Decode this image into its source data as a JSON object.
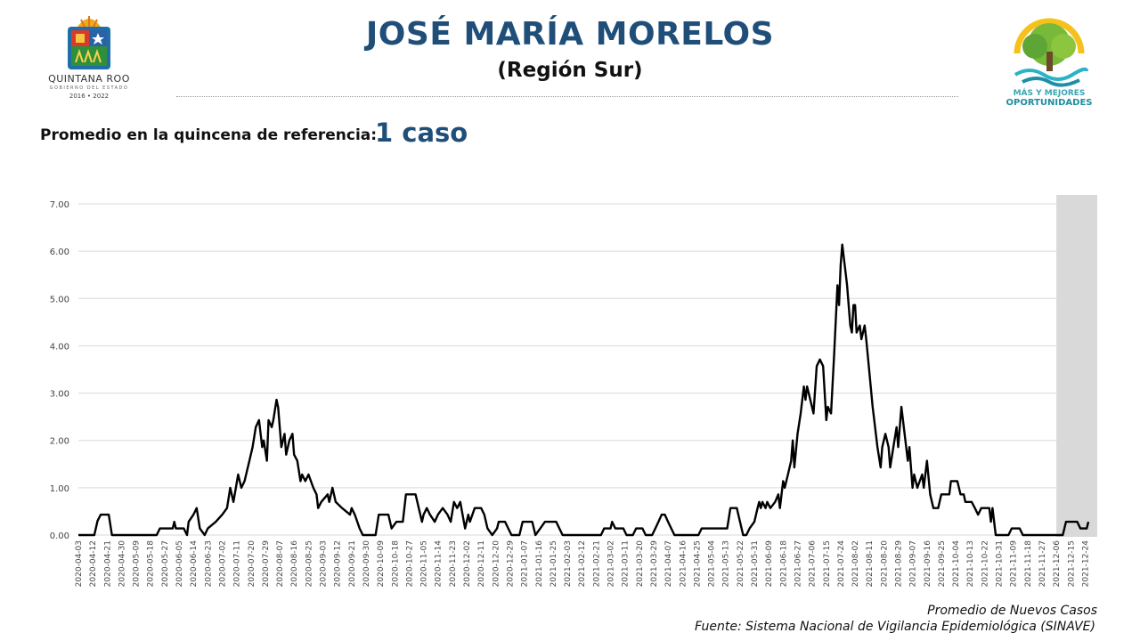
{
  "header": {
    "title": "JOSÉ MARÍA MORELOS",
    "subtitle": "(Región Sur)"
  },
  "logos": {
    "left_name": "QUINTANA ROO",
    "left_gov": "GOBIERNO DEL ESTADO",
    "left_years": "2016 • 2022",
    "right_line1": "MÁS Y MEJORES",
    "right_line2": "OPORTUNIDADES"
  },
  "kpi": {
    "label": "Promedio en la quincena de referencia:",
    "value": "1 caso"
  },
  "footer": {
    "series_label": "Promedio de Nuevos Casos",
    "source": "Fuente: Sistema Nacional de Vigilancia Epidemiológica (SINAVE)"
  },
  "colors": {
    "title": "#1f4e79",
    "line": "#000000",
    "grid": "#d9d9d9",
    "shade": "#d9d9d9"
  },
  "chart_data": {
    "type": "line",
    "title": "",
    "xlabel": "",
    "ylabel": "",
    "ylim": [
      0,
      7
    ],
    "grid": true,
    "y_ticks": [
      "0.00",
      "1.00",
      "2.00",
      "3.00",
      "4.00",
      "5.00",
      "6.00",
      "7.00"
    ],
    "x_tick_labels": [
      "2020-04-03",
      "2020-04-12",
      "2020-04-21",
      "2020-04-30",
      "2020-05-09",
      "2020-05-18",
      "2020-05-27",
      "2020-06-05",
      "2020-06-14",
      "2020-06-23",
      "2020-07-02",
      "2020-07-11",
      "2020-07-20",
      "2020-07-29",
      "2020-08-07",
      "2020-08-16",
      "2020-08-25",
      "2020-09-03",
      "2020-09-12",
      "2020-09-21",
      "2020-09-30",
      "2020-10-09",
      "2020-10-18",
      "2020-10-27",
      "2020-11-05",
      "2020-11-14",
      "2020-11-23",
      "2020-12-02",
      "2020-12-11",
      "2020-12-20",
      "2020-12-29",
      "2021-01-07",
      "2021-01-16",
      "2021-01-25",
      "2021-02-03",
      "2021-02-12",
      "2021-02-21",
      "2021-03-02",
      "2021-03-11",
      "2021-03-20",
      "2021-03-29",
      "2021-04-07",
      "2021-04-16",
      "2021-04-25",
      "2021-05-04",
      "2021-05-13",
      "2021-05-22",
      "2021-05-31",
      "2021-06-09",
      "2021-06-18",
      "2021-06-27",
      "2021-07-06",
      "2021-07-15",
      "2021-07-24",
      "2021-08-02",
      "2021-08-11",
      "2021-08-20",
      "2021-08-29",
      "2021-09-07",
      "2021-09-16",
      "2021-09-25",
      "2021-10-04",
      "2021-10-13",
      "2021-10-22",
      "2021-10-31",
      "2021-11-09",
      "2021-11-18",
      "2021-11-27",
      "2021-12-06",
      "2021-12-15",
      "2021-12-24"
    ],
    "shaded_range": [
      "2021-12-06",
      "2021-12-31"
    ],
    "series": [
      {
        "points": [
          [
            "2020-04-03",
            0
          ],
          [
            "2020-04-13",
            0
          ],
          [
            "2020-04-15",
            0.3
          ],
          [
            "2020-04-17",
            0.43
          ],
          [
            "2020-04-22",
            0.43
          ],
          [
            "2020-04-24",
            0
          ],
          [
            "2020-05-22",
            0
          ],
          [
            "2020-05-24",
            0.14
          ],
          [
            "2020-06-01",
            0.14
          ],
          [
            "2020-06-02",
            0.28
          ],
          [
            "2020-06-03",
            0.14
          ],
          [
            "2020-06-08",
            0.14
          ],
          [
            "2020-06-10",
            0
          ],
          [
            "2020-06-11",
            0.28
          ],
          [
            "2020-06-14",
            0.43
          ],
          [
            "2020-06-16",
            0.57
          ],
          [
            "2020-06-18",
            0.14
          ],
          [
            "2020-06-21",
            0
          ],
          [
            "2020-06-23",
            0.14
          ],
          [
            "2020-06-28",
            0.28
          ],
          [
            "2020-07-02",
            0.43
          ],
          [
            "2020-07-05",
            0.57
          ],
          [
            "2020-07-07",
            1.0
          ],
          [
            "2020-07-09",
            0.7
          ],
          [
            "2020-07-12",
            1.28
          ],
          [
            "2020-07-14",
            1.0
          ],
          [
            "2020-07-16",
            1.14
          ],
          [
            "2020-07-19",
            1.57
          ],
          [
            "2020-07-21",
            1.86
          ],
          [
            "2020-07-23",
            2.28
          ],
          [
            "2020-07-25",
            2.43
          ],
          [
            "2020-07-27",
            1.86
          ],
          [
            "2020-07-28",
            2.0
          ],
          [
            "2020-07-30",
            1.57
          ],
          [
            "2020-07-31",
            2.43
          ],
          [
            "2020-08-02",
            2.28
          ],
          [
            "2020-08-03",
            2.43
          ],
          [
            "2020-08-05",
            2.86
          ],
          [
            "2020-08-06",
            2.7
          ],
          [
            "2020-08-08",
            1.86
          ],
          [
            "2020-08-10",
            2.14
          ],
          [
            "2020-08-11",
            1.7
          ],
          [
            "2020-08-13",
            2.0
          ],
          [
            "2020-08-15",
            2.14
          ],
          [
            "2020-08-16",
            1.7
          ],
          [
            "2020-08-18",
            1.57
          ],
          [
            "2020-08-20",
            1.14
          ],
          [
            "2020-08-21",
            1.28
          ],
          [
            "2020-08-23",
            1.14
          ],
          [
            "2020-08-25",
            1.28
          ],
          [
            "2020-08-28",
            1.0
          ],
          [
            "2020-08-30",
            0.86
          ],
          [
            "2020-08-31",
            0.57
          ],
          [
            "2020-09-02",
            0.7
          ],
          [
            "2020-09-06",
            0.86
          ],
          [
            "2020-09-07",
            0.7
          ],
          [
            "2020-09-09",
            1.0
          ],
          [
            "2020-09-11",
            0.7
          ],
          [
            "2020-09-15",
            0.57
          ],
          [
            "2020-09-20",
            0.43
          ],
          [
            "2020-09-21",
            0.57
          ],
          [
            "2020-09-23",
            0.43
          ],
          [
            "2020-09-26",
            0.14
          ],
          [
            "2020-09-28",
            0
          ],
          [
            "2020-10-06",
            0
          ],
          [
            "2020-10-08",
            0.43
          ],
          [
            "2020-10-14",
            0.43
          ],
          [
            "2020-10-16",
            0.14
          ],
          [
            "2020-10-19",
            0.28
          ],
          [
            "2020-10-23",
            0.28
          ],
          [
            "2020-10-25",
            0.86
          ],
          [
            "2020-10-31",
            0.86
          ],
          [
            "2020-11-02",
            0.57
          ],
          [
            "2020-11-04",
            0.28
          ],
          [
            "2020-11-05",
            0.43
          ],
          [
            "2020-11-07",
            0.57
          ],
          [
            "2020-11-09",
            0.43
          ],
          [
            "2020-11-12",
            0.28
          ],
          [
            "2020-11-14",
            0.43
          ],
          [
            "2020-11-17",
            0.57
          ],
          [
            "2020-11-20",
            0.43
          ],
          [
            "2020-11-22",
            0.28
          ],
          [
            "2020-11-24",
            0.7
          ],
          [
            "2020-11-26",
            0.57
          ],
          [
            "2020-11-28",
            0.7
          ],
          [
            "2020-12-01",
            0.14
          ],
          [
            "2020-12-03",
            0.43
          ],
          [
            "2020-12-04",
            0.28
          ],
          [
            "2020-12-07",
            0.57
          ],
          [
            "2020-12-11",
            0.57
          ],
          [
            "2020-12-13",
            0.43
          ],
          [
            "2020-12-15",
            0.14
          ],
          [
            "2020-12-18",
            0
          ],
          [
            "2020-12-21",
            0.14
          ],
          [
            "2020-12-22",
            0.28
          ],
          [
            "2020-12-26",
            0.28
          ],
          [
            "2020-12-28",
            0.14
          ],
          [
            "2020-12-30",
            0
          ],
          [
            "2021-01-04",
            0
          ],
          [
            "2021-01-06",
            0.28
          ],
          [
            "2021-01-12",
            0.28
          ],
          [
            "2021-01-14",
            0
          ],
          [
            "2021-01-17",
            0.14
          ],
          [
            "2021-01-20",
            0.28
          ],
          [
            "2021-01-27",
            0.28
          ],
          [
            "2021-01-29",
            0.14
          ],
          [
            "2021-01-31",
            0
          ],
          [
            "2021-02-24",
            0
          ],
          [
            "2021-02-26",
            0.14
          ],
          [
            "2021-03-02",
            0.14
          ],
          [
            "2021-03-03",
            0.28
          ],
          [
            "2021-03-05",
            0.14
          ],
          [
            "2021-03-10",
            0.14
          ],
          [
            "2021-03-12",
            0
          ],
          [
            "2021-03-16",
            0
          ],
          [
            "2021-03-18",
            0.14
          ],
          [
            "2021-03-22",
            0.14
          ],
          [
            "2021-03-24",
            0
          ],
          [
            "2021-03-28",
            0
          ],
          [
            "2021-03-30",
            0.14
          ],
          [
            "2021-04-01",
            0.28
          ],
          [
            "2021-04-03",
            0.43
          ],
          [
            "2021-04-05",
            0.43
          ],
          [
            "2021-04-07",
            0.28
          ],
          [
            "2021-04-09",
            0.14
          ],
          [
            "2021-04-11",
            0
          ],
          [
            "2021-04-26",
            0
          ],
          [
            "2021-04-28",
            0.14
          ],
          [
            "2021-05-14",
            0.14
          ],
          [
            "2021-05-16",
            0.57
          ],
          [
            "2021-05-20",
            0.57
          ],
          [
            "2021-05-22",
            0.28
          ],
          [
            "2021-05-24",
            0
          ],
          [
            "2021-05-26",
            0
          ],
          [
            "2021-05-28",
            0.14
          ],
          [
            "2021-05-31",
            0.28
          ],
          [
            "2021-06-02",
            0.57
          ],
          [
            "2021-06-03",
            0.7
          ],
          [
            "2021-06-04",
            0.57
          ],
          [
            "2021-06-05",
            0.7
          ],
          [
            "2021-06-07",
            0.57
          ],
          [
            "2021-06-08",
            0.7
          ],
          [
            "2021-06-10",
            0.57
          ],
          [
            "2021-06-13",
            0.7
          ],
          [
            "2021-06-15",
            0.86
          ],
          [
            "2021-06-16",
            0.57
          ],
          [
            "2021-06-18",
            1.14
          ],
          [
            "2021-06-19",
            1.0
          ],
          [
            "2021-06-21",
            1.28
          ],
          [
            "2021-06-23",
            1.57
          ],
          [
            "2021-06-24",
            2.0
          ],
          [
            "2021-06-25",
            1.43
          ],
          [
            "2021-06-27",
            2.14
          ],
          [
            "2021-06-29",
            2.57
          ],
          [
            "2021-07-01",
            3.14
          ],
          [
            "2021-07-02",
            2.86
          ],
          [
            "2021-07-03",
            3.14
          ],
          [
            "2021-07-05",
            2.86
          ],
          [
            "2021-07-07",
            2.57
          ],
          [
            "2021-07-09",
            3.57
          ],
          [
            "2021-07-11",
            3.71
          ],
          [
            "2021-07-13",
            3.57
          ],
          [
            "2021-07-15",
            2.43
          ],
          [
            "2021-07-16",
            2.71
          ],
          [
            "2021-07-18",
            2.57
          ],
          [
            "2021-07-20",
            3.86
          ],
          [
            "2021-07-22",
            5.28
          ],
          [
            "2021-07-23",
            4.86
          ],
          [
            "2021-07-24",
            5.71
          ],
          [
            "2021-07-25",
            6.14
          ],
          [
            "2021-07-27",
            5.57
          ],
          [
            "2021-07-28",
            5.28
          ],
          [
            "2021-07-30",
            4.43
          ],
          [
            "2021-07-31",
            4.28
          ],
          [
            "2021-08-01",
            4.86
          ],
          [
            "2021-08-02",
            4.86
          ],
          [
            "2021-08-03",
            4.28
          ],
          [
            "2021-08-05",
            4.43
          ],
          [
            "2021-08-06",
            4.14
          ],
          [
            "2021-08-08",
            4.43
          ],
          [
            "2021-08-09",
            4.14
          ],
          [
            "2021-08-11",
            3.43
          ],
          [
            "2021-08-13",
            2.71
          ],
          [
            "2021-08-14",
            2.43
          ],
          [
            "2021-08-16",
            1.86
          ],
          [
            "2021-08-18",
            1.43
          ],
          [
            "2021-08-19",
            1.86
          ],
          [
            "2021-08-21",
            2.14
          ],
          [
            "2021-08-22",
            2.0
          ],
          [
            "2021-08-23",
            1.86
          ],
          [
            "2021-08-24",
            1.43
          ],
          [
            "2021-08-26",
            1.86
          ],
          [
            "2021-08-28",
            2.28
          ],
          [
            "2021-08-29",
            1.86
          ],
          [
            "2021-08-31",
            2.71
          ],
          [
            "2021-09-02",
            2.14
          ],
          [
            "2021-09-04",
            1.57
          ],
          [
            "2021-09-05",
            1.86
          ],
          [
            "2021-09-07",
            1.0
          ],
          [
            "2021-09-08",
            1.28
          ],
          [
            "2021-09-10",
            1.0
          ],
          [
            "2021-09-13",
            1.28
          ],
          [
            "2021-09-14",
            1.0
          ],
          [
            "2021-09-16",
            1.57
          ],
          [
            "2021-09-18",
            0.86
          ],
          [
            "2021-09-20",
            0.57
          ],
          [
            "2021-09-23",
            0.57
          ],
          [
            "2021-09-25",
            0.86
          ],
          [
            "2021-09-30",
            0.86
          ],
          [
            "2021-10-01",
            1.14
          ],
          [
            "2021-10-05",
            1.14
          ],
          [
            "2021-10-07",
            0.86
          ],
          [
            "2021-10-09",
            0.86
          ],
          [
            "2021-10-10",
            0.7
          ],
          [
            "2021-10-14",
            0.7
          ],
          [
            "2021-10-16",
            0.57
          ],
          [
            "2021-10-18",
            0.43
          ],
          [
            "2021-10-20",
            0.57
          ],
          [
            "2021-10-25",
            0.57
          ],
          [
            "2021-10-26",
            0.28
          ],
          [
            "2021-10-27",
            0.57
          ],
          [
            "2021-10-29",
            0
          ],
          [
            "2021-11-06",
            0
          ],
          [
            "2021-11-08",
            0.14
          ],
          [
            "2021-11-13",
            0.14
          ],
          [
            "2021-11-15",
            0
          ],
          [
            "2021-12-10",
            0
          ],
          [
            "2021-12-12",
            0.28
          ],
          [
            "2021-12-19",
            0.28
          ],
          [
            "2021-12-21",
            0.14
          ],
          [
            "2021-12-25",
            0.14
          ],
          [
            "2021-12-26",
            0.28
          ]
        ]
      }
    ]
  }
}
